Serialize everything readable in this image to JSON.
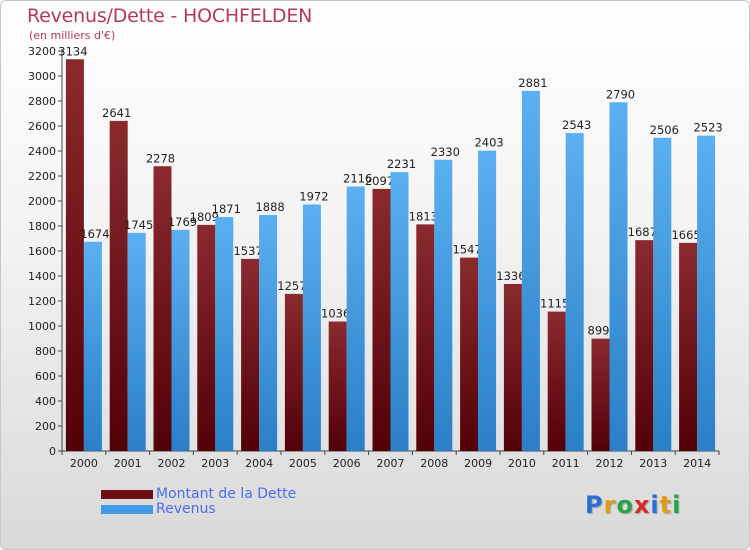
{
  "header": {
    "title": "Revenus/Dette - HOCHFELDEN",
    "subtitle": "(en milliers d'€)"
  },
  "legend": {
    "items": [
      {
        "label": "Montant de la Dette",
        "color": "#6b0f14"
      },
      {
        "label": "Revenus",
        "color": "#3f9be6"
      }
    ]
  },
  "logo": {
    "letters": [
      {
        "ch": "P",
        "color": "#2a6fd6"
      },
      {
        "ch": "r",
        "color": "#e09a1c"
      },
      {
        "ch": "o",
        "color": "#2aa34a"
      },
      {
        "ch": "x",
        "color": "#d62a2a"
      },
      {
        "ch": "i",
        "color": "#2a6fd6"
      },
      {
        "ch": "t",
        "color": "#e09a1c"
      },
      {
        "ch": "i",
        "color": "#2aa34a"
      }
    ]
  },
  "chart_data": {
    "type": "bar",
    "title": "Revenus/Dette - HOCHFELDEN",
    "subtitle": "(en milliers d'€)",
    "categories": [
      "2000",
      "2001",
      "2002",
      "2003",
      "2004",
      "2005",
      "2006",
      "2007",
      "2008",
      "2009",
      "2010",
      "2011",
      "2012",
      "2013",
      "2014"
    ],
    "series": [
      {
        "name": "Montant de la Dette",
        "color": "#7a1a1f",
        "values": [
          3134,
          2641,
          2278,
          1809,
          1537,
          1257,
          1036,
          2097,
          1813,
          1547,
          1336,
          1115,
          899,
          1687,
          1665
        ],
        "labels": [
          "3134",
          "2641",
          "2278",
          "1809",
          "1537",
          "1257",
          "1036",
          "2097",
          "1813",
          "1547",
          "1336",
          "1115",
          "899",
          "1687",
          "1665"
        ]
      },
      {
        "name": "Revenus",
        "color": "#4aa3ea",
        "values": [
          1674,
          1745,
          1769,
          1871,
          1888,
          1972,
          2116,
          2231,
          2330,
          2403,
          2881,
          2543,
          2790,
          2506,
          2523
        ],
        "labels": [
          "1674",
          "1745",
          "1769",
          "1871",
          "1888",
          "1972",
          "2116",
          "2231",
          "2330",
          "2403",
          "2881",
          "2543",
          "2790",
          "2506",
          "2523"
        ]
      }
    ],
    "ylim": [
      0,
      3200
    ],
    "yticks": [
      0,
      200,
      400,
      600,
      800,
      1000,
      1200,
      1400,
      1600,
      1800,
      2000,
      2200,
      2400,
      2600,
      2800,
      3000,
      3200
    ],
    "grid": false,
    "legend": "bottom-left"
  }
}
